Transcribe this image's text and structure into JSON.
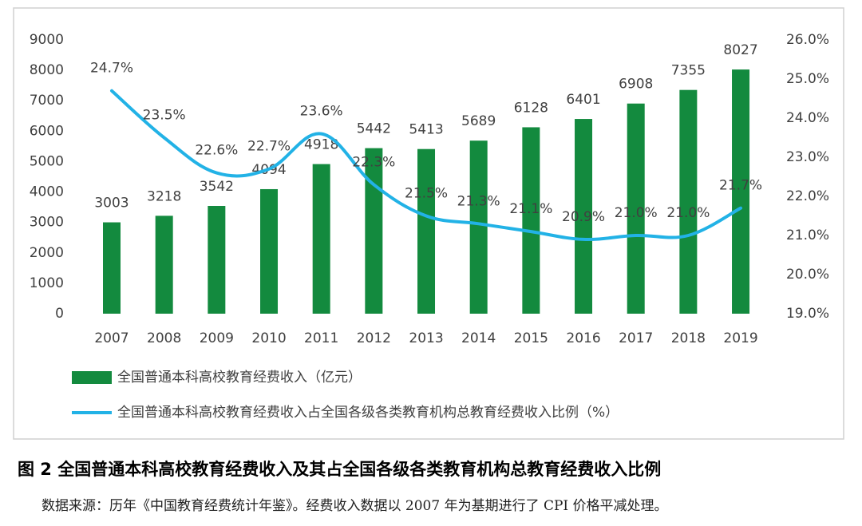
{
  "chart_data": {
    "type": "bar-line",
    "categories": [
      "2007",
      "2008",
      "2009",
      "2010",
      "2011",
      "2012",
      "2013",
      "2014",
      "2015",
      "2016",
      "2017",
      "2018",
      "2019"
    ],
    "series": [
      {
        "name": "全国普通本科高校教育经费收入（亿元）",
        "type": "bar",
        "color": "#138a3e",
        "values": [
          3003,
          3218,
          3542,
          4094,
          4918,
          5442,
          5413,
          5689,
          6128,
          6401,
          6908,
          7355,
          8027
        ]
      },
      {
        "name": "全国普通本科高校教育经费收入占全国各级各类教育机构总教育经费收入比例（%）",
        "type": "line",
        "axis": "y2",
        "color": "#22b2e6",
        "values": [
          24.7,
          23.5,
          22.6,
          22.7,
          23.6,
          22.3,
          21.5,
          21.3,
          21.1,
          20.9,
          21.0,
          21.0,
          21.7
        ],
        "value_labels": [
          "24.7%",
          "23.5%",
          "22.6%",
          "22.7%",
          "23.6%",
          "22.3%",
          "21.5%",
          "21.3%",
          "21.1%",
          "20.9%",
          "21.0%",
          "21.0%",
          "21.7%"
        ]
      }
    ],
    "ylim": [
      0,
      9000
    ],
    "yticks": [
      0,
      1000,
      2000,
      3000,
      4000,
      5000,
      6000,
      7000,
      8000,
      9000
    ],
    "y2lim": [
      19,
      26
    ],
    "y2ticks": [
      {
        "value": 19,
        "label": "19.0%"
      },
      {
        "value": 20,
        "label": "20.0%"
      },
      {
        "value": 21,
        "label": "21.0%"
      },
      {
        "value": 22,
        "label": "22.0%"
      },
      {
        "value": 23,
        "label": "23.0%"
      },
      {
        "value": 24,
        "label": "24.0%"
      },
      {
        "value": 25,
        "label": "25.0%"
      },
      {
        "value": 26,
        "label": "26.0%"
      }
    ],
    "grid": false,
    "legend": "bottom"
  },
  "caption": "图 2 全国普通本科高校教育经费收入及其占全国各级各类教育机构总教育经费收入比例",
  "source": "数据来源：历年《中国教育经费统计年鉴》。经费收入数据以 2007 年为基期进行了 CPI 价格平减处理。"
}
